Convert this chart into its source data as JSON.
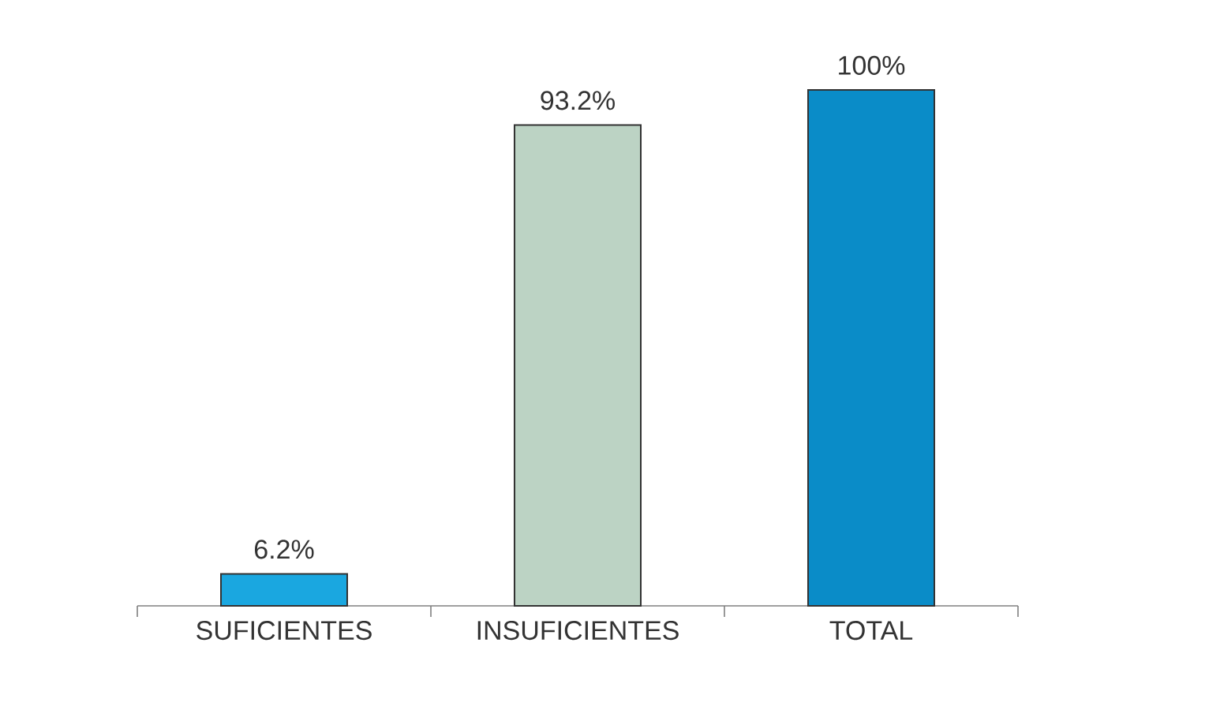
{
  "chart_data": {
    "type": "bar",
    "categories": [
      "SUFICIENTES",
      "INSUFICIENTES",
      "TOTAL"
    ],
    "values": [
      6.2,
      93.2,
      100
    ],
    "colors": [
      "#1aa7e0",
      "#bcd3c4",
      "#0a8cc8"
    ],
    "value_labels": [
      "6.2%",
      "93.2%",
      "100%"
    ]
  }
}
